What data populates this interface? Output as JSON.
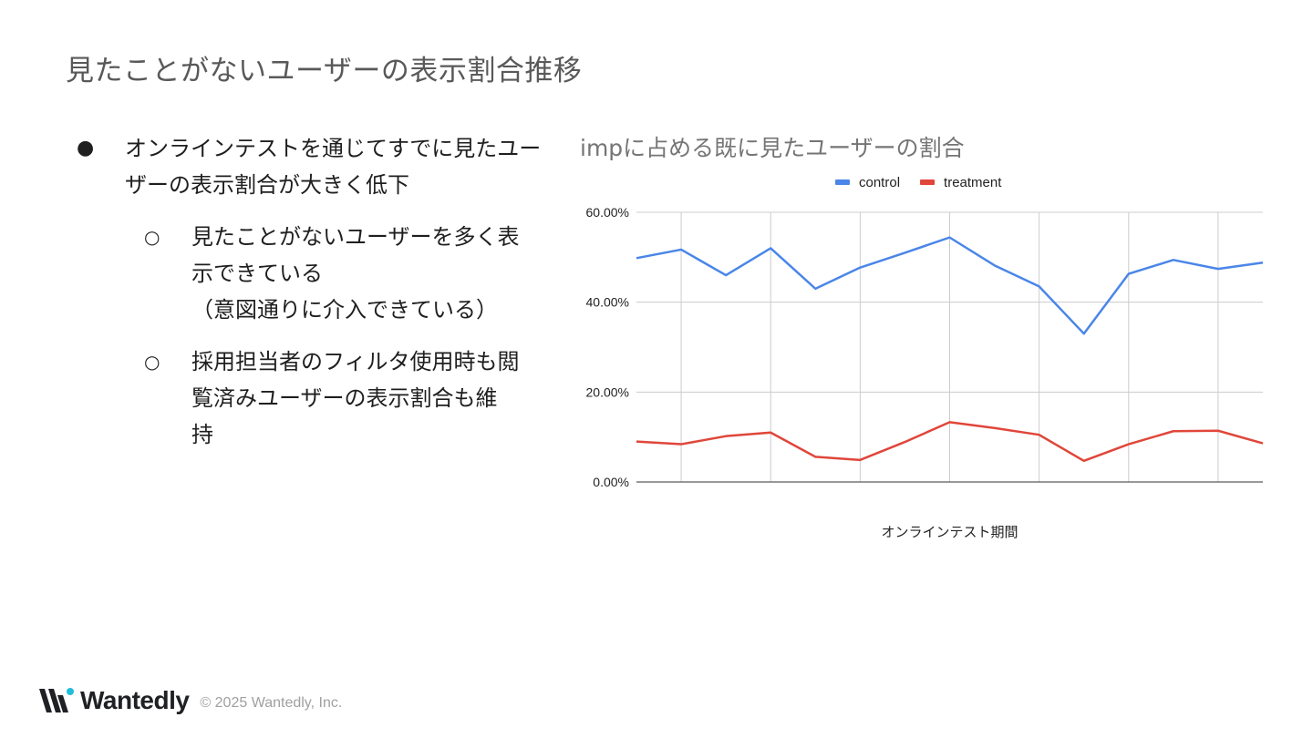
{
  "slide": {
    "title": "見たことがないユーザーの表示割合推移"
  },
  "bullets": {
    "main_lines": [
      "オンラインテストを通じてすでに見たユー",
      "ザーの表示割合が大きく低下"
    ],
    "sub1_lines": [
      "見たことがないユーザーを多く表",
      "示できている",
      "（意図通りに介入できている）"
    ],
    "sub2_lines": [
      "採用担当者のフィルタ使用時も閲",
      "覧済みユーザーの表示割合も維",
      "持"
    ],
    "main_marker": "●",
    "sub_marker": "○"
  },
  "chart_data": {
    "type": "line",
    "title": "impに占める既に見たユーザーの割合",
    "xlabel": "オンラインテスト期間",
    "ylabel": "",
    "y_tick_labels": [
      "0.00%",
      "20.00%",
      "40.00%",
      "60.00%"
    ],
    "ylim": [
      0,
      60
    ],
    "grid": true,
    "legend_position": "top",
    "x": [
      1,
      2,
      3,
      4,
      5,
      6,
      7,
      8,
      9,
      10,
      11,
      12,
      13,
      14,
      15
    ],
    "series": [
      {
        "name": "control",
        "color": "#4a86e8",
        "values": [
          49.8,
          51.7,
          46.0,
          52.0,
          43.0,
          47.7,
          51.0,
          54.4,
          48.2,
          43.5,
          33.0,
          46.3,
          49.4,
          47.4,
          48.8
        ]
      },
      {
        "name": "treatment",
        "color": "#e0463a",
        "values": [
          9.0,
          8.4,
          10.2,
          11.0,
          5.6,
          4.9,
          8.9,
          13.3,
          12.0,
          10.5,
          4.7,
          8.4,
          11.3,
          11.4,
          8.6
        ]
      }
    ]
  },
  "footer": {
    "brand": "Wantedly",
    "copyright": "© 2025 Wantedly, Inc.",
    "logo_icon": "wantedly-w-logo-icon",
    "logo_color": "#21bddb"
  }
}
